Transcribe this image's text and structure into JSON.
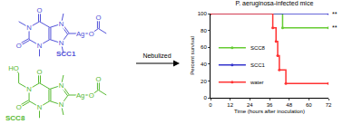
{
  "chart_data": {
    "type": "line",
    "title": "P. aeruginosa-infected mice",
    "x_label": "Time (hours after inoculation)",
    "y_label": "Percent survival",
    "xlim": [
      0,
      72
    ],
    "xticks": [
      0,
      12,
      24,
      36,
      48,
      60,
      72
    ],
    "ylim": [
      0,
      100
    ],
    "yticks": [
      0,
      20,
      40,
      60,
      80,
      100
    ],
    "legend": "bottom left",
    "series": [
      {
        "name": "SCC8",
        "color": "#66cc33",
        "line_style": "step",
        "x": [
          0,
          44,
          72
        ],
        "values": [
          100,
          83,
          83
        ]
      },
      {
        "name": "SCC1",
        "color": "#3333cc",
        "line_style": "step",
        "x": [
          0,
          72
        ],
        "values": [
          100,
          100
        ]
      },
      {
        "name": "water",
        "color": "#ff3333",
        "line_style": "step",
        "x": [
          0,
          38,
          40,
          41,
          42,
          46,
          72
        ],
        "values": [
          100,
          83,
          67,
          50,
          33,
          17,
          17
        ]
      }
    ],
    "annotations": [
      {
        "x": 72,
        "y": 100,
        "text": "**"
      },
      {
        "x": 72,
        "y": 83,
        "text": "**"
      }
    ]
  },
  "diagram": {
    "arrow_label": "Nebulized",
    "molecules": [
      {
        "name": "SCC1",
        "color": "#5050d8",
        "atoms": [
          "O",
          "N",
          "O",
          "N",
          "N",
          "N",
          "Ag",
          "O",
          "O"
        ]
      },
      {
        "name": "SCC8",
        "color": "#55b830",
        "atoms": [
          "O",
          "N",
          "O",
          "N",
          "N",
          "N",
          "Ag",
          "O",
          "O",
          "HO"
        ]
      }
    ]
  }
}
